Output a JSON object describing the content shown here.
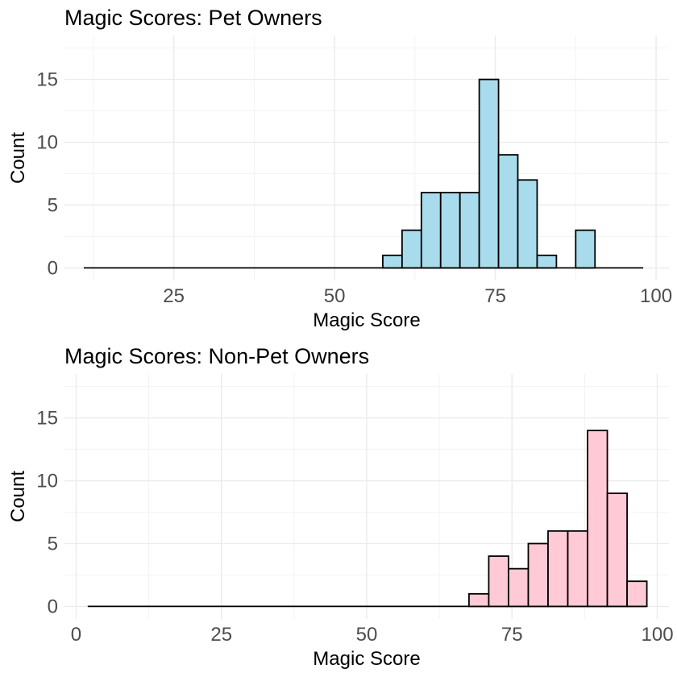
{
  "chart_data": [
    {
      "type": "histogram",
      "title": "Magic Scores: Pet Owners",
      "xlabel": "Magic Score",
      "ylabel": "Count",
      "xlim": [
        8,
        102
      ],
      "ylim": [
        -1,
        18.5
      ],
      "x_ticks": [
        25,
        50,
        75,
        100
      ],
      "y_ticks": [
        0,
        5,
        10,
        15
      ],
      "fill_color": "#a8dcec",
      "outline_color": "#000000",
      "bin_width": 3,
      "bins_start": 11,
      "bins_end": 98,
      "bins": [
        {
          "x0": 57.5,
          "x1": 60.5,
          "count": 1
        },
        {
          "x0": 60.5,
          "x1": 63.5,
          "count": 3
        },
        {
          "x0": 63.5,
          "x1": 66.5,
          "count": 6
        },
        {
          "x0": 66.5,
          "x1": 69.5,
          "count": 6
        },
        {
          "x0": 69.5,
          "x1": 72.5,
          "count": 6
        },
        {
          "x0": 72.5,
          "x1": 75.5,
          "count": 15
        },
        {
          "x0": 75.5,
          "x1": 78.5,
          "count": 9
        },
        {
          "x0": 78.5,
          "x1": 81.5,
          "count": 7
        },
        {
          "x0": 81.5,
          "x1": 84.5,
          "count": 1
        },
        {
          "x0": 87.5,
          "x1": 90.5,
          "count": 3
        }
      ]
    },
    {
      "type": "histogram",
      "title": "Magic Scores: Non-Pet Owners",
      "xlabel": "Magic Score",
      "ylabel": "Count",
      "xlim": [
        -2,
        102
      ],
      "ylim": [
        -1,
        18.5
      ],
      "x_ticks": [
        0,
        25,
        50,
        75,
        100
      ],
      "y_ticks": [
        0,
        5,
        10,
        15
      ],
      "fill_color": "#ffc9d5",
      "outline_color": "#000000",
      "bin_width": 3.4,
      "bins_start": 2,
      "bins_end": 98,
      "bins": [
        {
          "x0": 67.6,
          "x1": 71.0,
          "count": 1
        },
        {
          "x0": 71.0,
          "x1": 74.4,
          "count": 4
        },
        {
          "x0": 74.4,
          "x1": 77.8,
          "count": 3
        },
        {
          "x0": 77.8,
          "x1": 81.2,
          "count": 5
        },
        {
          "x0": 81.2,
          "x1": 84.6,
          "count": 6
        },
        {
          "x0": 84.6,
          "x1": 88.0,
          "count": 6
        },
        {
          "x0": 88.0,
          "x1": 91.4,
          "count": 14
        },
        {
          "x0": 91.4,
          "x1": 94.8,
          "count": 9
        },
        {
          "x0": 94.8,
          "x1": 98.2,
          "count": 2
        }
      ]
    }
  ]
}
